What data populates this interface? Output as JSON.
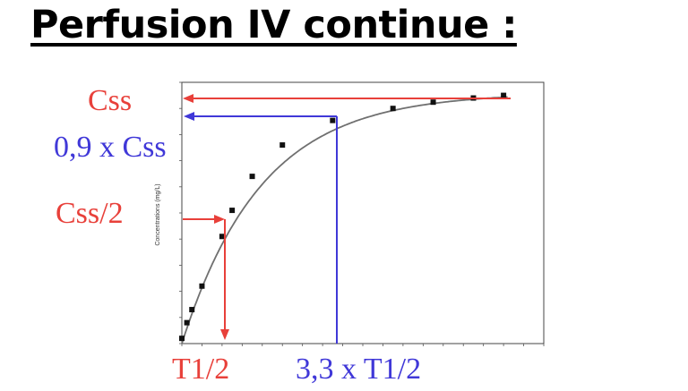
{
  "title": "Perfusion IV continue :",
  "chart_data": {
    "type": "line",
    "title": "",
    "ylabel": "Concentrations (mg/L)",
    "xlabel": "",
    "xlim": [
      0,
      36
    ],
    "ylim": [
      0,
      5
    ],
    "grid": false,
    "curve": {
      "type": "one-compartment-infusion",
      "css": 4.8,
      "half_life": 5.5
    },
    "points": {
      "x": [
        0,
        0.5,
        1,
        2,
        4,
        5,
        7,
        10,
        15,
        21,
        25,
        29,
        32
      ],
      "y": [
        0.1,
        0.4,
        0.65,
        1.1,
        2.05,
        2.55,
        3.2,
        3.8,
        4.27,
        4.5,
        4.62,
        4.7,
        4.75
      ]
    },
    "annotations": {
      "css": "Css",
      "css_09": "0,9 x Css",
      "css_half": "Css/2",
      "t_half": "T1/2",
      "t_33": "3,3 x T1/2"
    },
    "colors": {
      "red": "#e8403a",
      "blue": "#4038d8",
      "curve": "#707070",
      "point": "#111111"
    }
  }
}
